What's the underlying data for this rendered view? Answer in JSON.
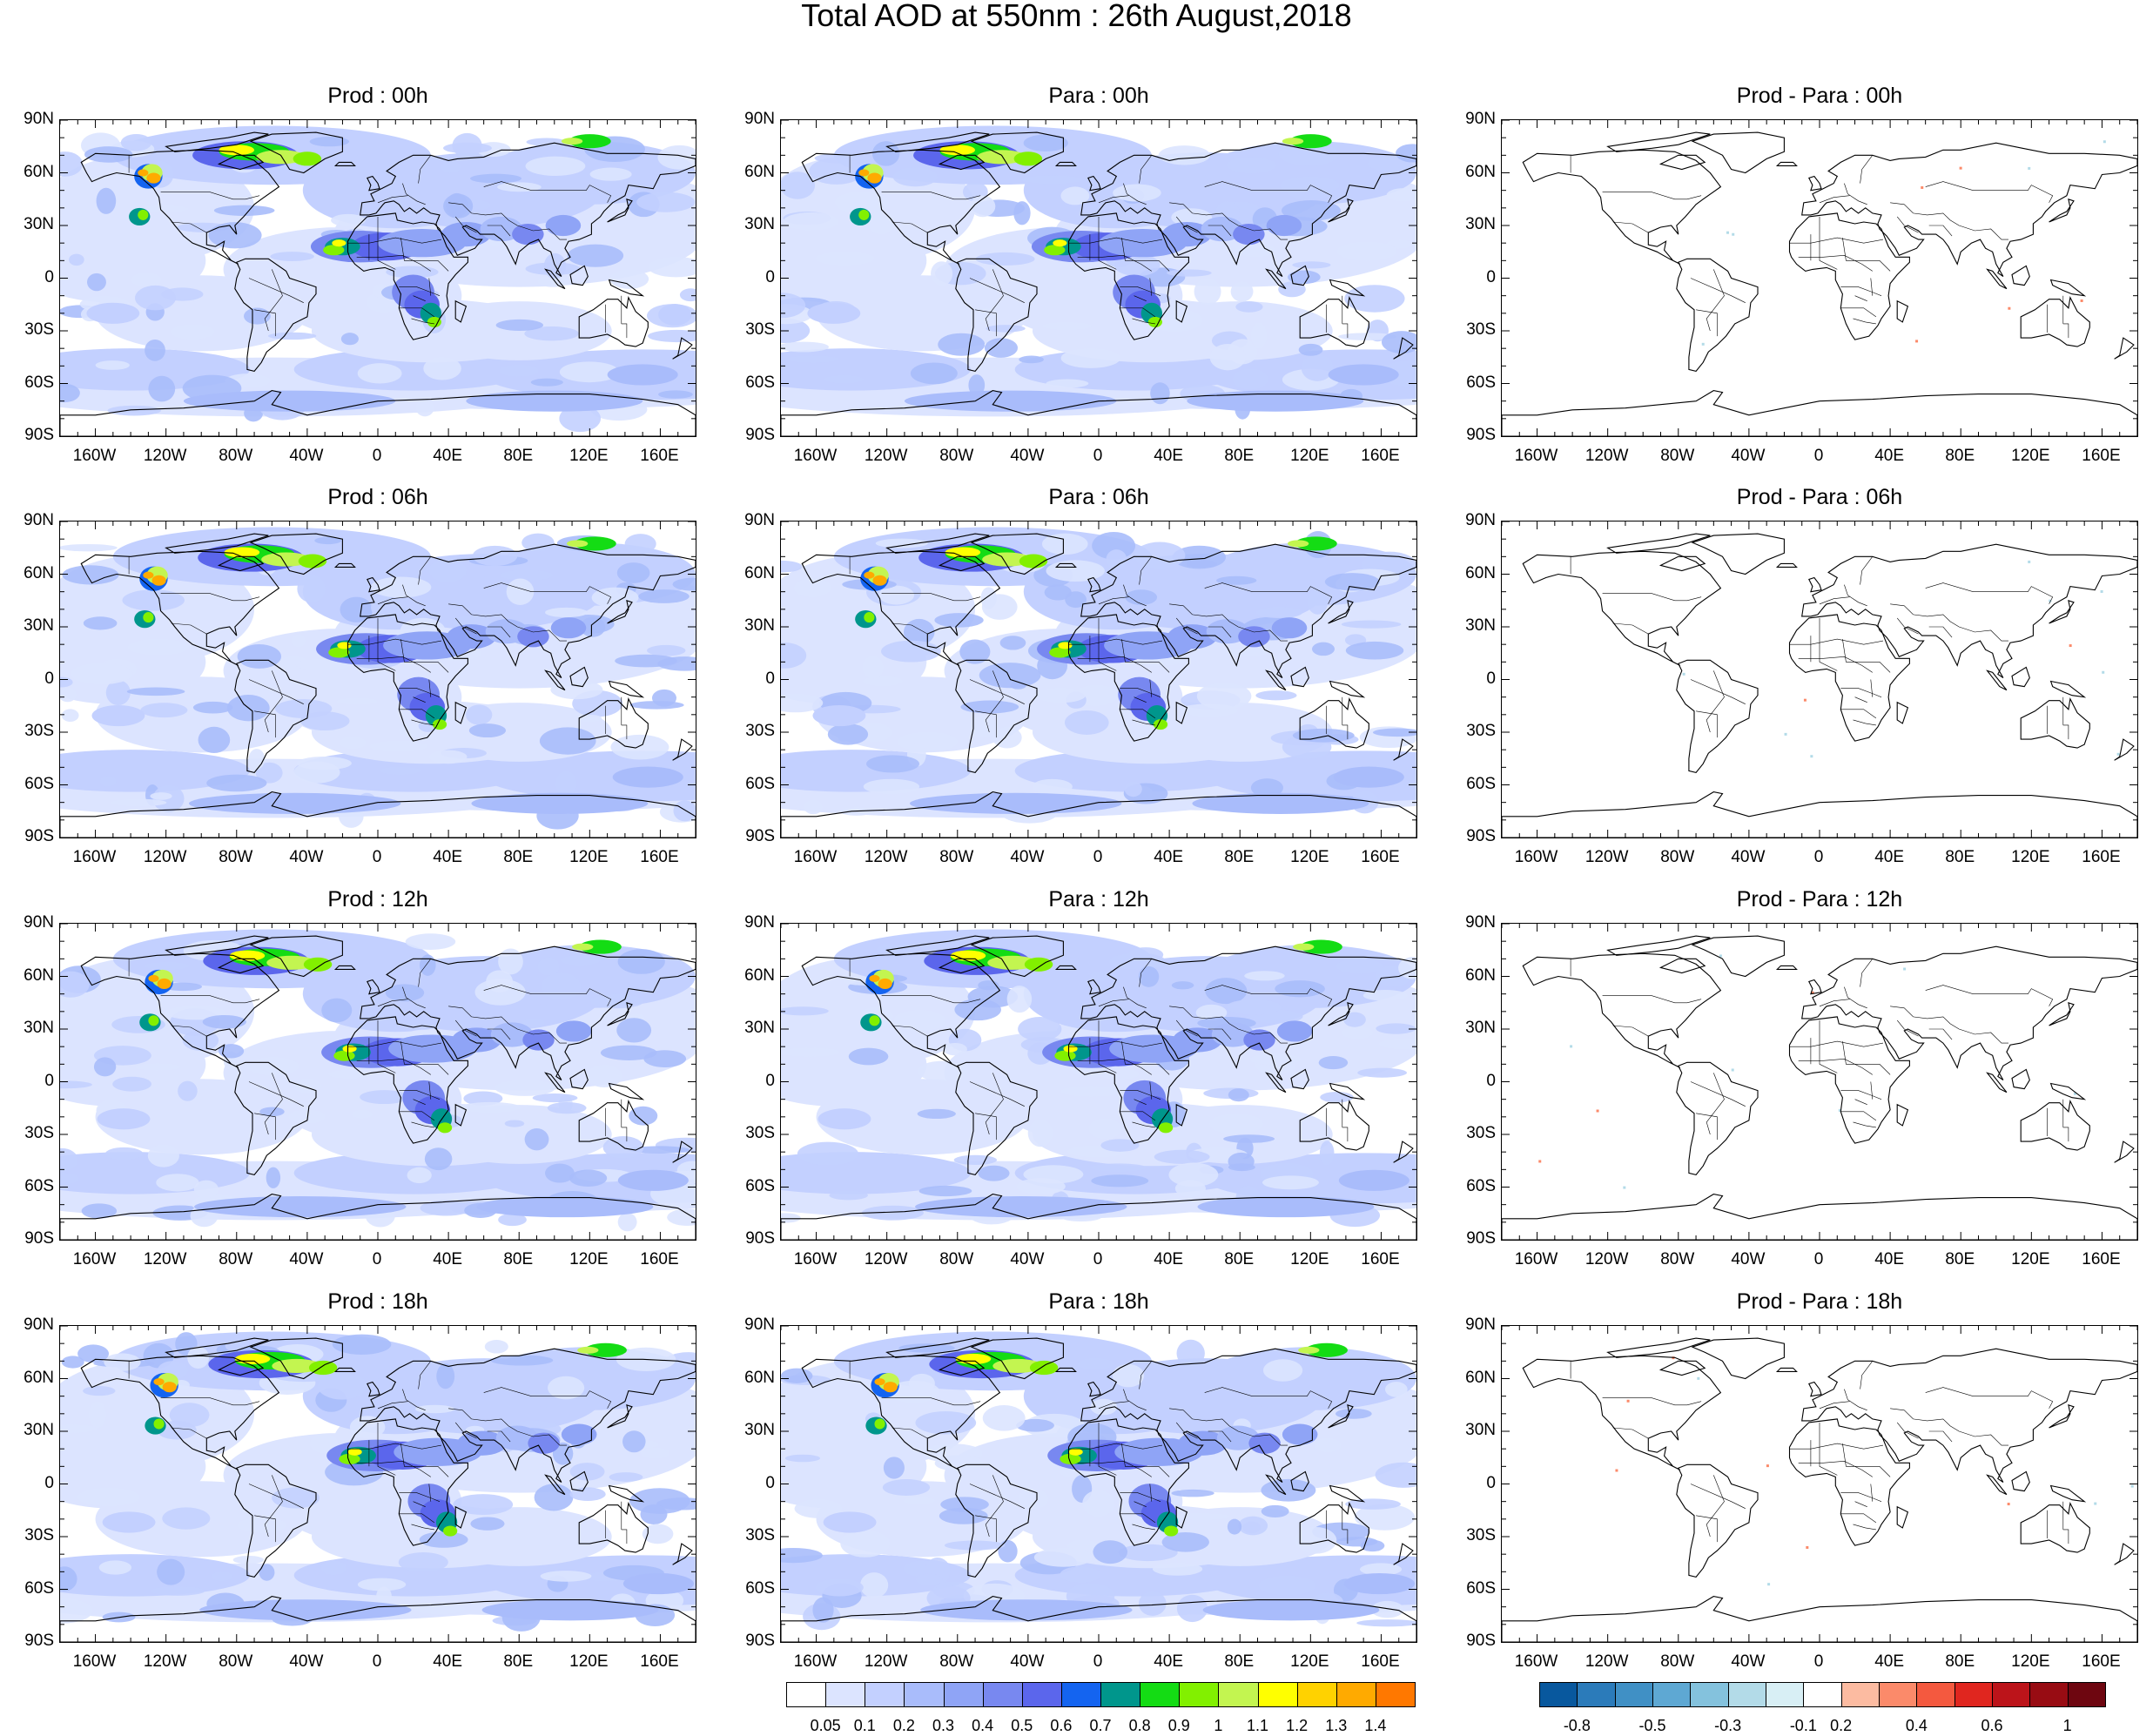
{
  "title": "Total AOD at 550nm : 26th August,2018",
  "lat_labels": [
    "90N",
    "60N",
    "30N",
    "0",
    "30S",
    "60S",
    "90S"
  ],
  "lon_labels": [
    "160W",
    "120W",
    "80W",
    "40W",
    "0",
    "40E",
    "80E",
    "120E",
    "160E"
  ],
  "panels": [
    {
      "title": "Prod : 00h",
      "kind": "field",
      "variant": 0
    },
    {
      "title": "Para : 00h",
      "kind": "field",
      "variant": 0
    },
    {
      "title": "Prod - Para : 00h",
      "kind": "diff",
      "variant": 0
    },
    {
      "title": "Prod : 06h",
      "kind": "field",
      "variant": 1
    },
    {
      "title": "Para : 06h",
      "kind": "field",
      "variant": 1
    },
    {
      "title": "Prod - Para : 06h",
      "kind": "diff",
      "variant": 1
    },
    {
      "title": "Prod : 12h",
      "kind": "field",
      "variant": 2
    },
    {
      "title": "Para : 12h",
      "kind": "field",
      "variant": 2
    },
    {
      "title": "Prod - Para : 12h",
      "kind": "diff",
      "variant": 2
    },
    {
      "title": "Prod : 18h",
      "kind": "field",
      "variant": 3
    },
    {
      "title": "Para : 18h",
      "kind": "field",
      "variant": 3
    },
    {
      "title": "Prod - Para : 18h",
      "kind": "diff",
      "variant": 3
    }
  ],
  "aod_colorbar": {
    "labels": [
      "0.05",
      "0.1",
      "0.2",
      "0.3",
      "0.4",
      "0.5",
      "0.6",
      "0.7",
      "0.8",
      "0.9",
      "1",
      "1.1",
      "1.2",
      "1.3",
      "1.4"
    ],
    "colors": [
      "#ffffff",
      "#dce4ff",
      "#c3d0ff",
      "#a9bcfb",
      "#8fa4f6",
      "#7888f0",
      "#5b66ec",
      "#1464f0",
      "#00968c",
      "#14dc14",
      "#82f000",
      "#c3f550",
      "#ffff00",
      "#ffd200",
      "#ffaa00",
      "#ff7800"
    ]
  },
  "diff_colorbar": {
    "labels": [
      "-0.8",
      "-0.5",
      "-0.3",
      "-0.1",
      "0.2",
      "0.4",
      "0.6",
      "1"
    ],
    "colors": [
      "#08589e",
      "#2b7bba",
      "#4090c5",
      "#5ea8d3",
      "#84c2dd",
      "#b3dbe8",
      "#d8eff5",
      "#ffffff",
      "#fcbba1",
      "#fb8a6a",
      "#f4593f",
      "#e0261f",
      "#bc141a",
      "#980c13",
      "#6e0610"
    ]
  }
}
